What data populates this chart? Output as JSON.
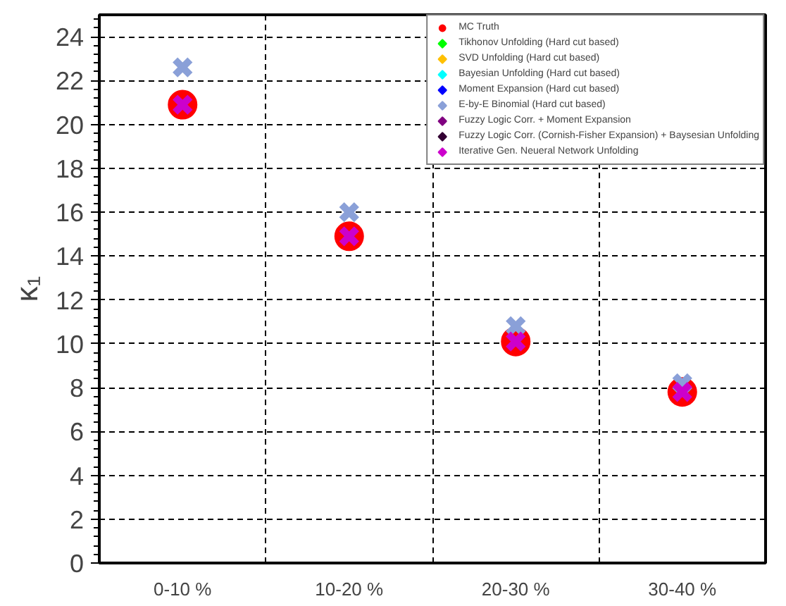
{
  "chart_data": {
    "type": "scatter",
    "ylabel": "κ₁",
    "categories": [
      "0-10 %",
      "10-20 %",
      "20-30 %",
      "30-40 %"
    ],
    "ylim": [
      0,
      25
    ],
    "yticks": [
      0,
      2,
      4,
      6,
      8,
      10,
      12,
      14,
      16,
      18,
      20,
      22,
      24
    ],
    "grid": true,
    "legend": "top right",
    "series": [
      {
        "name": "MC Truth",
        "color": "#ff0000",
        "marker": "circle",
        "values": [
          20.9,
          14.9,
          10.1,
          7.8
        ]
      },
      {
        "name": "Tikhonov Unfolding (Hard cut based)",
        "color": "#00ff00",
        "marker": "cross",
        "values": [
          null,
          null,
          null,
          null
        ]
      },
      {
        "name": "SVD Unfolding (Hard cut based)",
        "color": "#ffc000",
        "marker": "cross",
        "values": [
          null,
          null,
          null,
          null
        ]
      },
      {
        "name": "Bayesian Unfolding (Hard cut based)",
        "color": "#00ffff",
        "marker": "cross",
        "values": [
          null,
          null,
          null,
          null
        ]
      },
      {
        "name": "Moment Expansion (Hard cut based)",
        "color": "#0000ff",
        "marker": "cross",
        "values": [
          null,
          null,
          null,
          null
        ]
      },
      {
        "name": "E-by-E Binomial (Hard cut based)",
        "color": "#8aa0d8",
        "marker": "cross",
        "values": [
          22.6,
          16.0,
          10.8,
          8.2
        ]
      },
      {
        "name": "Fuzzy Logic Corr. + Moment Expansion",
        "color": "#800080",
        "marker": "cross",
        "values": [
          null,
          null,
          null,
          null
        ]
      },
      {
        "name": "Fuzzy Logic Corr. (Cornish-Fisher Expansion) + Baysesian Unfolding",
        "color": "#330033",
        "marker": "cross",
        "values": [
          null,
          null,
          null,
          null
        ]
      },
      {
        "name": "Iterative Gen. Neueral Network Unfolding",
        "color": "#cc00cc",
        "marker": "cross",
        "values": [
          20.9,
          14.9,
          10.1,
          7.8
        ]
      }
    ]
  }
}
